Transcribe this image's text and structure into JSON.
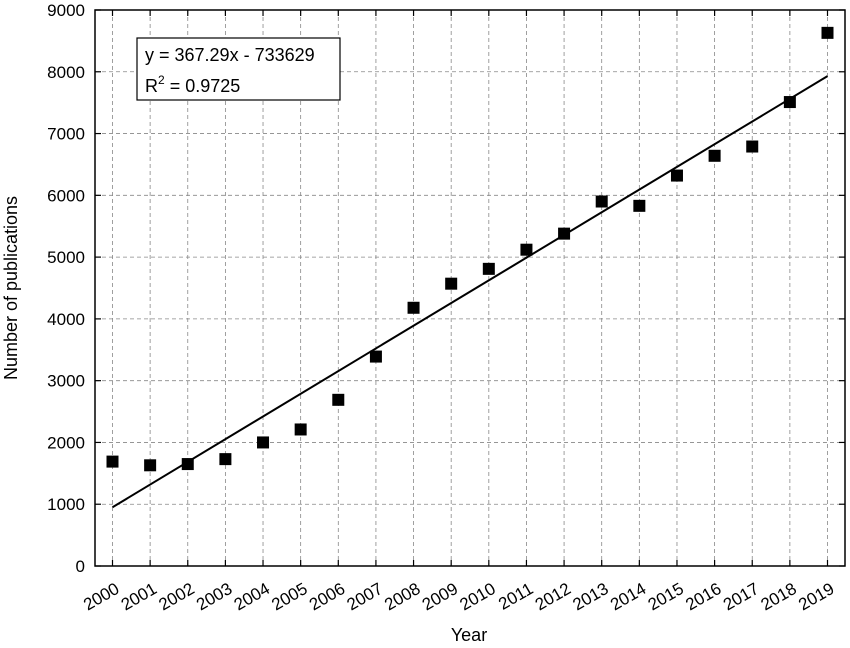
{
  "chart_data": {
    "type": "scatter",
    "title": "",
    "xlabel": "Year",
    "ylabel": "Number of publications",
    "xlim": [
      2000,
      2019
    ],
    "ylim": [
      0,
      9000
    ],
    "x_ticks": [
      2000,
      2001,
      2002,
      2003,
      2004,
      2005,
      2006,
      2007,
      2008,
      2009,
      2010,
      2011,
      2012,
      2013,
      2014,
      2015,
      2016,
      2017,
      2018,
      2019
    ],
    "y_ticks": [
      0,
      1000,
      2000,
      3000,
      4000,
      5000,
      6000,
      7000,
      8000,
      9000
    ],
    "grid": "dashed",
    "series": [
      {
        "marker": "square",
        "x": [
          2000,
          2001,
          2002,
          2003,
          2004,
          2005,
          2006,
          2007,
          2008,
          2009,
          2010,
          2011,
          2012,
          2013,
          2014,
          2015,
          2016,
          2017,
          2018,
          2019
        ],
        "y": [
          1690,
          1630,
          1650,
          1730,
          2000,
          2210,
          2690,
          3390,
          4180,
          4570,
          4810,
          5120,
          5380,
          5900,
          5830,
          6320,
          6640,
          6790,
          7510,
          8630
        ]
      }
    ],
    "trendline": {
      "slope": 367.29,
      "intercept": -733629
    },
    "annotation": {
      "equation": "y = 367.29x - 733629",
      "r2_prefix": "R",
      "r2_superscript": "2",
      "r2_value": " = 0.9725"
    }
  }
}
